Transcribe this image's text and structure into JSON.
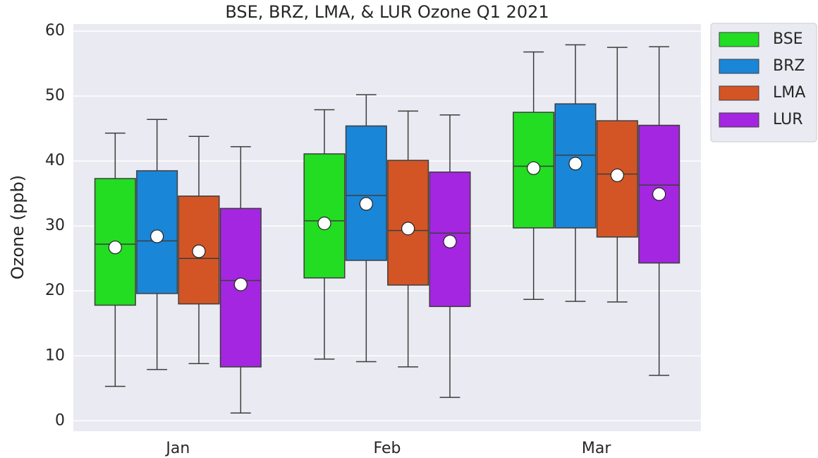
{
  "chart_data": {
    "type": "box",
    "title": "BSE, BRZ, LMA, & LUR Ozone Q1 2021",
    "y_label": "Ozone (ppb)",
    "categories": [
      "Jan",
      "Feb",
      "Mar"
    ],
    "ylim": [
      -1.6,
      61.1
    ],
    "yticks": [
      0,
      10,
      20,
      30,
      40,
      50,
      60
    ],
    "grid": true,
    "legend": "outside-upper-right",
    "series": [
      {
        "name": "BSE",
        "color": "#22dd22",
        "min": [
          5.3,
          9.5,
          18.7
        ],
        "q1": [
          17.8,
          22.0,
          29.7
        ],
        "median": [
          27.2,
          30.8,
          39.2
        ],
        "q3": [
          37.3,
          41.1,
          47.5
        ],
        "max": [
          44.3,
          47.9,
          56.8
        ],
        "mean": [
          26.7,
          30.4,
          38.9
        ]
      },
      {
        "name": "BRZ",
        "color": "#1a86d8",
        "min": [
          7.9,
          9.1,
          18.4
        ],
        "q1": [
          19.6,
          24.7,
          29.7
        ],
        "median": [
          27.7,
          34.7,
          40.9
        ],
        "q3": [
          38.5,
          45.4,
          48.8
        ],
        "max": [
          46.4,
          50.2,
          57.9
        ],
        "mean": [
          28.4,
          33.4,
          39.6
        ]
      },
      {
        "name": "LMA",
        "color": "#d35526",
        "min": [
          8.8,
          8.3,
          18.3
        ],
        "q1": [
          18.0,
          20.9,
          28.3
        ],
        "median": [
          25.0,
          29.3,
          38.0
        ],
        "q3": [
          34.6,
          40.1,
          46.2
        ],
        "max": [
          43.8,
          47.7,
          57.5
        ],
        "mean": [
          26.1,
          29.6,
          37.8
        ]
      },
      {
        "name": "LUR",
        "color": "#a526e0",
        "min": [
          1.2,
          3.6,
          7.0
        ],
        "q1": [
          8.3,
          17.6,
          24.3
        ],
        "median": [
          21.6,
          28.9,
          36.3
        ],
        "q3": [
          32.7,
          38.3,
          45.5
        ],
        "max": [
          42.2,
          47.1,
          57.6
        ],
        "mean": [
          21.0,
          27.6,
          34.9
        ]
      }
    ]
  }
}
